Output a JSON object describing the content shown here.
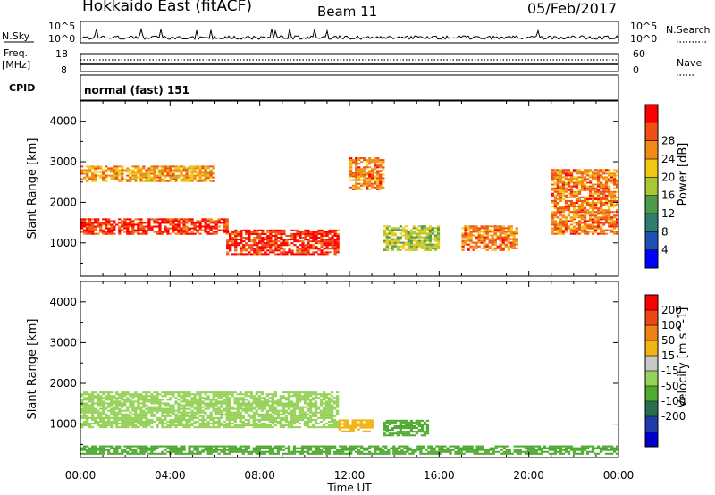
{
  "header": {
    "title": "Hokkaido East (fitACF)",
    "beam": "Beam 11",
    "date": "05/Feb/2017"
  },
  "top_panels": {
    "nsky_label": "N.Sky",
    "nsearch_label": "N.Search",
    "noise_ticks_left": [
      "10^5",
      "10^0"
    ],
    "noise_ticks_right": [
      "10^5",
      "10^0"
    ],
    "freq_label_1": "Freq.",
    "freq_label_2": "[MHz]",
    "freq_ticks": [
      "18",
      "8"
    ],
    "nave_label": "Nave",
    "nave_ticks": [
      "60",
      "0"
    ],
    "cpid_label": "CPID",
    "cpid_value": "normal (fast) 151"
  },
  "time_axis": {
    "label": "Time UT",
    "ticks": [
      "00:00",
      "04:00",
      "08:00",
      "12:00",
      "16:00",
      "20:00",
      "00:00"
    ]
  },
  "chart_data": [
    {
      "type": "heatmap",
      "name": "power",
      "ylabel": "Slant Range [km]",
      "y_ticks": [
        1000,
        2000,
        3000,
        4000
      ],
      "ylim": [
        180,
        4500
      ],
      "xlim_hours": [
        0,
        24
      ],
      "colorbar": {
        "label": "Power [dB]",
        "ticks": [
          "4",
          "8",
          "12",
          "16",
          "20",
          "24",
          "28"
        ],
        "colors": [
          "#0000ff",
          "#1e50b4",
          "#2e7d6e",
          "#4c9a4c",
          "#a8c832",
          "#f0c814",
          "#f08c14",
          "#f05014",
          "#ff0000"
        ]
      },
      "echo_regions": [
        {
          "t": [
            0.0,
            6.5
          ],
          "r": [
            1200,
            1600
          ],
          "level": 28
        },
        {
          "t": [
            6.5,
            11.5
          ],
          "r": [
            700,
            1300
          ],
          "level": 28
        },
        {
          "t": [
            0.0,
            6.0
          ],
          "r": [
            2500,
            2900
          ],
          "level": 22
        },
        {
          "t": [
            12.0,
            13.5
          ],
          "r": [
            2300,
            3100
          ],
          "level": 24
        },
        {
          "t": [
            13.5,
            16.0
          ],
          "r": [
            800,
            1400
          ],
          "level": 16
        },
        {
          "t": [
            17.0,
            19.5
          ],
          "r": [
            800,
            1400
          ],
          "level": 24
        },
        {
          "t": [
            21.0,
            24.0
          ],
          "r": [
            1200,
            2800
          ],
          "level": 24
        }
      ]
    },
    {
      "type": "heatmap",
      "name": "velocity",
      "ylabel": "Slant Range [km]",
      "y_ticks": [
        1000,
        2000,
        3000,
        4000
      ],
      "ylim": [
        180,
        4500
      ],
      "xlim_hours": [
        0,
        24
      ],
      "colorbar": {
        "label": "Velocity [m s^-1]",
        "ticks": [
          "200",
          "100",
          "50",
          "15",
          "-15",
          "-50",
          "-100",
          "-200"
        ],
        "colors": [
          "#0000c8",
          "#1e3caa",
          "#286e50",
          "#50aa32",
          "#96d25a",
          "#c8c8c8",
          "#f0b414",
          "#f08214",
          "#f04614",
          "#ff0000"
        ]
      },
      "echo_regions": [
        {
          "t": [
            0.0,
            11.5
          ],
          "r": [
            900,
            1800
          ],
          "level": 0
        },
        {
          "t": [
            11.5,
            13.0
          ],
          "r": [
            800,
            1100
          ],
          "level": -80
        },
        {
          "t": [
            13.5,
            15.5
          ],
          "r": [
            700,
            1100
          ],
          "level": 40
        },
        {
          "t": [
            0.0,
            24.0
          ],
          "r": [
            250,
            450
          ],
          "level": 30
        }
      ]
    }
  ]
}
